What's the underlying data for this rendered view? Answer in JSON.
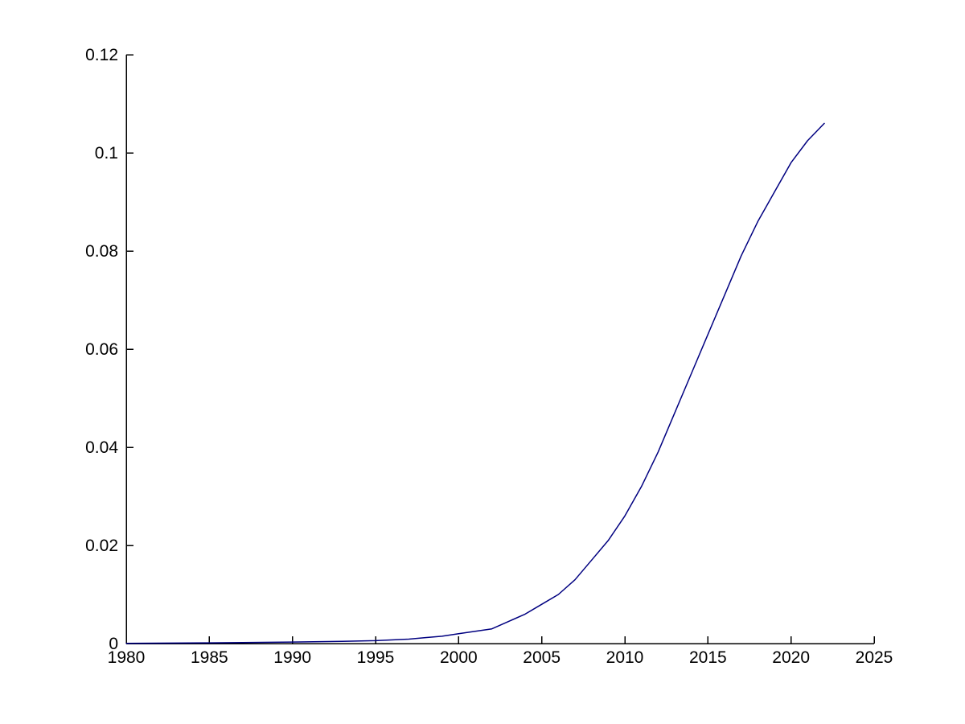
{
  "figure": {
    "background": "#ffffff",
    "description": "MATLAB-style line plot of a sigmoid growth curve, 1980 to 2022"
  },
  "chart_data": {
    "type": "line",
    "title": "",
    "xlabel": "",
    "ylabel": "",
    "xlim": [
      1980,
      2025
    ],
    "ylim": [
      0,
      0.12
    ],
    "grid": false,
    "legend": null,
    "axis_color": "#000000",
    "tick_direction": "in",
    "xticks": {
      "values": [
        1980,
        1985,
        1990,
        1995,
        2000,
        2005,
        2010,
        2015,
        2020,
        2025
      ],
      "labels": [
        "1980",
        "1985",
        "1990",
        "1995",
        "2000",
        "2005",
        "2010",
        "2015",
        "2020",
        "2025"
      ]
    },
    "yticks": {
      "values": [
        0,
        0.02,
        0.04,
        0.06,
        0.08,
        0.1,
        0.12
      ],
      "labels": [
        "0",
        "0.02",
        "0.04",
        "0.06",
        "0.08",
        "0.1",
        "0.12"
      ]
    },
    "series": [
      {
        "color": "#000080",
        "x": [
          1980,
          1985,
          1987,
          1990,
          1993,
          1995,
          1997,
          1998,
          1999,
          2000,
          2001,
          2002,
          2003,
          2004,
          2005,
          2006,
          2007,
          2008,
          2009,
          2010,
          2011,
          2012,
          2013,
          2014,
          2015,
          2016,
          2017,
          2018,
          2019,
          2020,
          2021,
          2022
        ],
        "y": [
          5e-05,
          0.00015,
          0.0002,
          0.0003,
          0.00045,
          0.0006,
          0.0009,
          0.0012,
          0.0015,
          0.002,
          0.0025,
          0.003,
          0.0045,
          0.006,
          0.008,
          0.01,
          0.013,
          0.017,
          0.021,
          0.026,
          0.032,
          0.039,
          0.047,
          0.055,
          0.063,
          0.071,
          0.079,
          0.086,
          0.092,
          0.098,
          0.1025,
          0.106
        ]
      }
    ]
  }
}
